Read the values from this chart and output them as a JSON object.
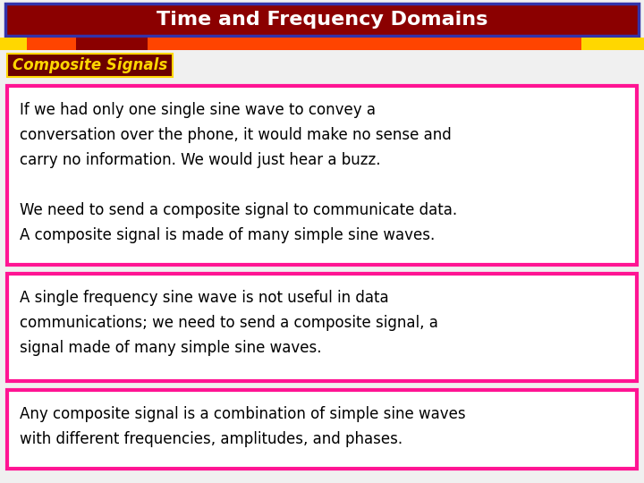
{
  "title": "Time and Frequency Domains",
  "title_bg": "#8B0000",
  "title_border": "#3333AA",
  "title_text_color": "#FFFFFF",
  "subtitle": "Composite Signals",
  "subtitle_bg": "#6B0000",
  "subtitle_text_color": "#FFD700",
  "bg_color": "#F0F0F0",
  "stripe_color_orange": "#FF4400",
  "stripe_color_yellow": "#FFD700",
  "stripe_color_darkred": "#8B0000",
  "box_border_color": "#FF1493",
  "box_bg_color": "#FFFFFF",
  "text_color": "#000000",
  "box1_line1": "If we had only one single sine wave to convey a",
  "box1_line2": "conversation over the phone, it would make no sense and",
  "box1_line3": "carry no information. We would just hear a buzz.",
  "box1_line4": "",
  "box1_line5": "We need to send a composite signal to communicate data.",
  "box1_line6": "A composite signal is made of many simple sine waves.",
  "box2_line1": "A single frequency sine wave is not useful in data",
  "box2_line2": "communications; we need to send a composite signal, a",
  "box2_line3": "signal made of many simple sine waves.",
  "box3_line1": "Any composite signal is a combination of simple sine waves",
  "box3_line2": "with different frequencies, amplitudes, and phases.",
  "font_size_title": 16,
  "font_size_subtitle": 12,
  "font_size_body": 12
}
